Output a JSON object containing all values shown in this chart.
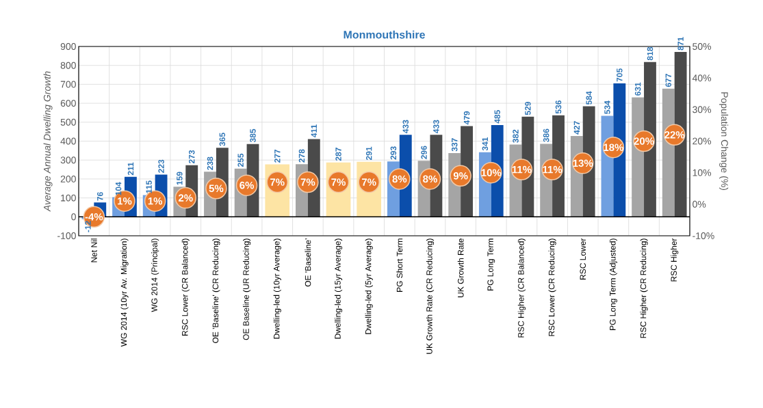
{
  "chart_data": {
    "type": "bar",
    "title": "Monmouthshire",
    "ylabel": "Average Annual Dwelling Growth",
    "y2label": "Population Change (%)",
    "categories": [
      "Net Nil",
      "WG 2014 (10yr Av. Migration)",
      "WG 2014 (Principal)",
      "RSC Lower (CR Balanced)",
      "OE 'Baseline' (CR Reducing)",
      "OE Baseline (UR Reducing)",
      "Dwelling-led (10yr Average)",
      "OE 'Baseline'",
      "Dwelling-led (15yr Average)",
      "Dwelling-led (5yr Average)",
      "PG Short Term",
      "UK Growth Rate (CR Reducing)",
      "UK Growth Rate",
      "PG Long Term",
      "RSC Higher (CR Balanced)",
      "RSC Lower (CR Reducing)",
      "RSC Lower",
      "PG Long Term (Adjusted)",
      "RSC Higher (CR Reducing)",
      "RSC Higher"
    ],
    "series": [
      {
        "type": "bar",
        "values": [
          -12,
          104,
          115,
          159,
          238,
          255,
          null,
          278,
          null,
          null,
          293,
          296,
          337,
          341,
          382,
          386,
          427,
          534,
          631,
          677
        ],
        "colors": [
          "#6f9fe0",
          "#6f9fe0",
          "#6f9fe0",
          "#a5a5a5",
          "#a5a5a5",
          "#a5a5a5",
          null,
          "#a5a5a5",
          null,
          null,
          "#6f9fe0",
          "#a5a5a5",
          "#a5a5a5",
          "#6f9fe0",
          "#a5a5a5",
          "#a5a5a5",
          "#a5a5a5",
          "#6f9fe0",
          "#a5a5a5",
          "#a5a5a5"
        ]
      },
      {
        "type": "bar",
        "values": [
          76,
          211,
          223,
          273,
          365,
          385,
          277,
          411,
          287,
          291,
          433,
          433,
          479,
          485,
          529,
          536,
          584,
          705,
          818,
          871
        ],
        "colors": [
          "#0b4eab",
          "#0b4eab",
          "#0b4eab",
          "#4a4a4a",
          "#4a4a4a",
          "#4a4a4a",
          "#fde4a4",
          "#4a4a4a",
          "#fde4a4",
          "#fde4a4",
          "#0b4eab",
          "#4a4a4a",
          "#4a4a4a",
          "#0b4eab",
          "#4a4a4a",
          "#4a4a4a",
          "#4a4a4a",
          "#0b4eab",
          "#4a4a4a",
          "#4a4a4a"
        ]
      },
      {
        "type": "scatter",
        "axis": "y2",
        "color": "#e8792b",
        "values": [
          -4,
          1,
          1,
          2,
          5,
          6,
          7,
          7,
          7,
          7,
          8,
          8,
          9,
          10,
          11,
          11,
          13,
          18,
          20,
          22
        ],
        "value_labels": [
          "-4%",
          "1%",
          "1%",
          "2%",
          "5%",
          "6%",
          "7%",
          "7%",
          "7%",
          "7%",
          "8%",
          "8%",
          "9%",
          "10%",
          "11%",
          "11%",
          "13%",
          "18%",
          "20%",
          "22%"
        ]
      }
    ],
    "ylim": [
      -100,
      900
    ],
    "yticks": [
      -100,
      0,
      100,
      200,
      300,
      400,
      500,
      600,
      700,
      800,
      900
    ],
    "y2lim": [
      -10,
      50
    ],
    "y2ticks": [
      {
        "value": -10,
        "label": "-10%"
      },
      {
        "value": 0,
        "label": "0%"
      },
      {
        "value": 10,
        "label": "10%"
      },
      {
        "value": 20,
        "label": "20%"
      },
      {
        "value": 30,
        "label": "30%"
      },
      {
        "value": 40,
        "label": "40%"
      },
      {
        "value": 50,
        "label": "50%"
      }
    ],
    "grid": true,
    "data_labels": true,
    "marker": "circle"
  }
}
